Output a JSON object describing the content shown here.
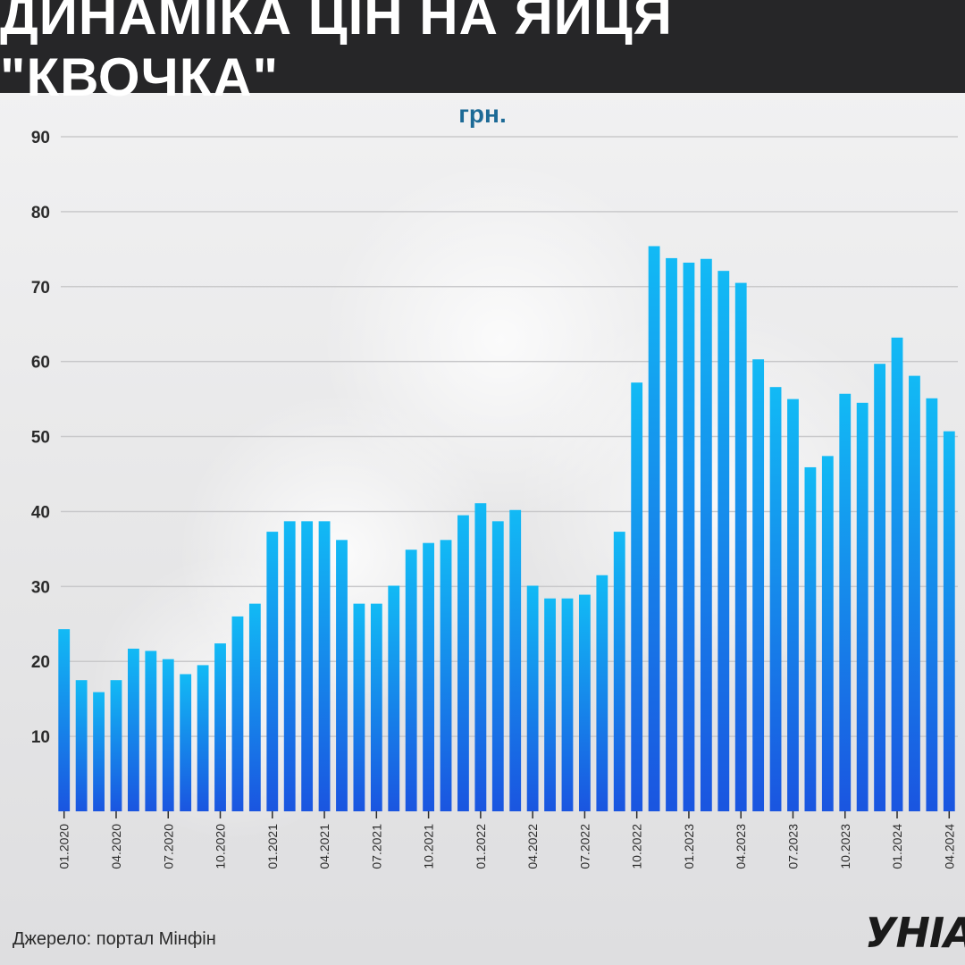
{
  "header": {
    "title": "ДИНАМІКА ЦІН НА ЯЙЦЯ \"КВОЧКА\""
  },
  "chart_data": {
    "type": "bar",
    "title": "ДИНАМІКА ЦІН НА ЯЙЦЯ \"КВОЧКА\"",
    "ylabel": "грн.",
    "ylim": [
      0,
      90
    ],
    "yticks": [
      10,
      20,
      30,
      40,
      50,
      60,
      70,
      80,
      90
    ],
    "grid": true,
    "categories": [
      "01.2020",
      "02.2020",
      "03.2020",
      "04.2020",
      "05.2020",
      "06.2020",
      "07.2020",
      "08.2020",
      "09.2020",
      "10.2020",
      "11.2020",
      "12.2020",
      "01.2021",
      "02.2021",
      "03.2021",
      "04.2021",
      "05.2021",
      "06.2021",
      "07.2021",
      "08.2021",
      "09.2021",
      "10.2021",
      "11.2021",
      "12.2021",
      "01.2022",
      "02.2022",
      "03.2022",
      "04.2022",
      "05.2022",
      "06.2022",
      "07.2022",
      "08.2022",
      "09.2022",
      "10.2022",
      "11.2022",
      "12.2022",
      "01.2023",
      "02.2023",
      "03.2023",
      "04.2023",
      "05.2023",
      "06.2023",
      "07.2023",
      "08.2023",
      "09.2023",
      "10.2023",
      "11.2023",
      "12.2023",
      "01.2024",
      "02.2024",
      "03.2024",
      "04.2024"
    ],
    "tick_labels": [
      "01.2020",
      "04.2020",
      "07.2020",
      "10.2020",
      "01.2021",
      "04.2021",
      "07.2021",
      "10.2021",
      "01.2022",
      "04.2022",
      "07.2022",
      "10.2022",
      "01.2023",
      "04.2023",
      "07.2023",
      "10.2023",
      "01.2024",
      "04.2024"
    ],
    "values": [
      24.3,
      17.5,
      15.9,
      17.5,
      21.7,
      21.4,
      20.3,
      18.3,
      19.5,
      22.4,
      26.0,
      27.7,
      37.3,
      38.7,
      38.7,
      38.7,
      36.2,
      27.7,
      27.7,
      30.1,
      34.9,
      35.8,
      36.2,
      39.5,
      41.1,
      38.7,
      40.2,
      30.1,
      28.4,
      28.4,
      28.9,
      31.5,
      37.3,
      57.2,
      75.4,
      73.8,
      73.2,
      73.7,
      72.1,
      70.5,
      60.3,
      56.6,
      55.0,
      45.9,
      47.4,
      55.7,
      54.5,
      59.7,
      63.2,
      58.1,
      55.1,
      50.7
    ],
    "colors": {
      "bar_top": "#12baf5",
      "bar_bottom": "#1a55e0"
    },
    "unit": "грн.",
    "source": "Джерело: портал Мінфін"
  },
  "footer": {
    "source": "Джерело: портал Мінфін",
    "logo": "УНІАН"
  }
}
